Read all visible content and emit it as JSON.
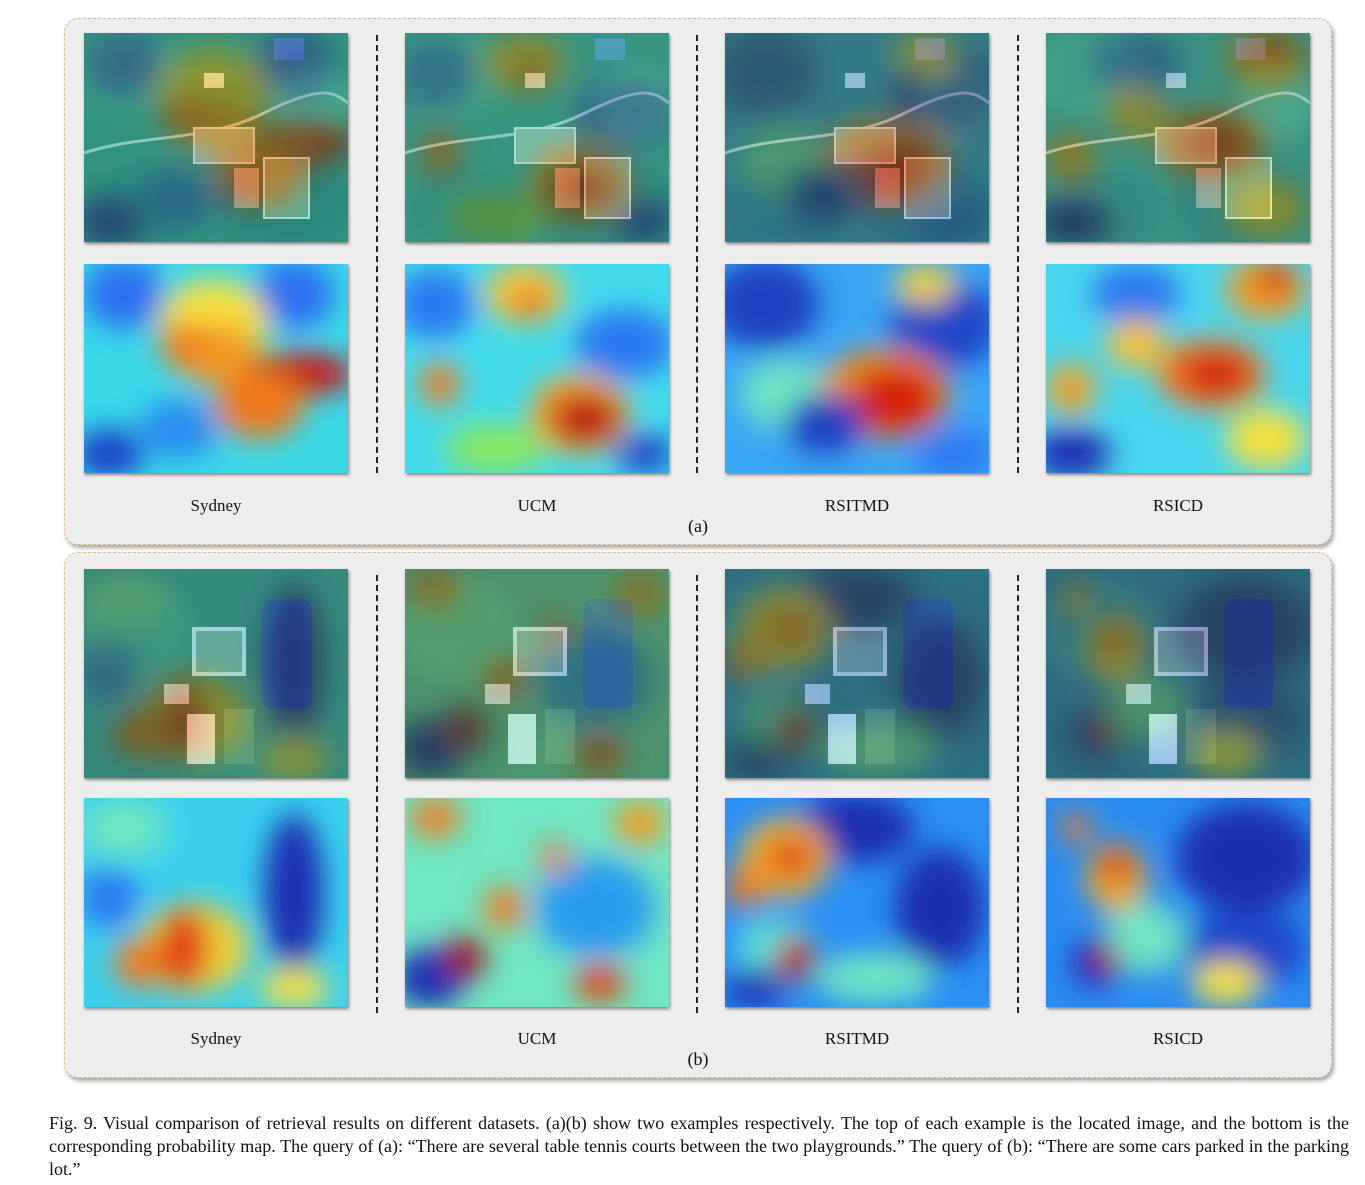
{
  "figure": {
    "panels": [
      {
        "id": "a",
        "label": "(a)",
        "datasets": [
          "Sydney",
          "UCM",
          "RSITMD",
          "RSICD"
        ]
      },
      {
        "id": "b",
        "label": "(b)",
        "datasets": [
          "Sydney",
          "UCM",
          "RSITMD",
          "RSICD"
        ]
      }
    ],
    "caption": "Fig. 9.  Visual comparison of retrieval results on different datasets. (a)(b) show two examples respectively. The top of each example is the located image, and the bottom is the corresponding probability map. The query of (a): “There are several table tennis courts between the two playgrounds.” The query of (b): “There are some cars parked in the parking lot.”"
  },
  "colors": {
    "panel_background": "#ededed",
    "panel_border": "#d9b98a",
    "heatmap_low": "#1a1aa8",
    "heatmap_mid": "#37e0e8",
    "heatmap_high": "#c81010"
  }
}
